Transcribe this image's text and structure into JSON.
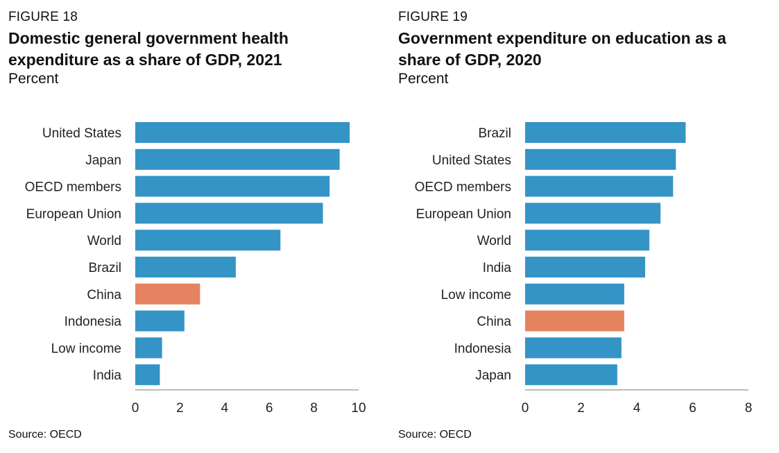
{
  "chart_data": [
    {
      "type": "bar",
      "orientation": "horizontal",
      "figure_label": "FIGURE 18",
      "title": "Domestic general government health expenditure as a share of GDP, 2021",
      "subtitle": "Percent",
      "source": "Source: OECD",
      "categories": [
        "United States",
        "Japan",
        "OECD members",
        "European Union",
        "World",
        "Brazil",
        "China",
        "Indonesia",
        "Low income",
        "India"
      ],
      "values": [
        9.6,
        9.15,
        8.7,
        8.4,
        6.5,
        4.5,
        2.9,
        2.2,
        1.2,
        1.1
      ],
      "highlight": "China",
      "xlim": [
        0,
        10
      ],
      "xticks": [
        0,
        2,
        4,
        6,
        8,
        10
      ],
      "xlabel": "",
      "ylabel": "",
      "grid": false
    },
    {
      "type": "bar",
      "orientation": "horizontal",
      "figure_label": "FIGURE 19",
      "title": "Government expenditure on education as a share of GDP, 2020",
      "subtitle": "Percent",
      "source": "Source: OECD",
      "categories": [
        "Brazil",
        "United States",
        "OECD members",
        "European Union",
        "World",
        "India",
        "Low income",
        "China",
        "Indonesia",
        "Japan"
      ],
      "values": [
        5.75,
        5.4,
        5.3,
        4.85,
        4.45,
        4.3,
        3.55,
        3.55,
        3.45,
        3.3
      ],
      "highlight": "China",
      "xlim": [
        0,
        8
      ],
      "xticks": [
        0,
        2,
        4,
        6,
        8
      ],
      "xlabel": "",
      "ylabel": "",
      "grid": false
    }
  ],
  "colors": {
    "bar": "#3494c6",
    "highlight": "#e5825f",
    "axis": "#7a7a7a"
  }
}
